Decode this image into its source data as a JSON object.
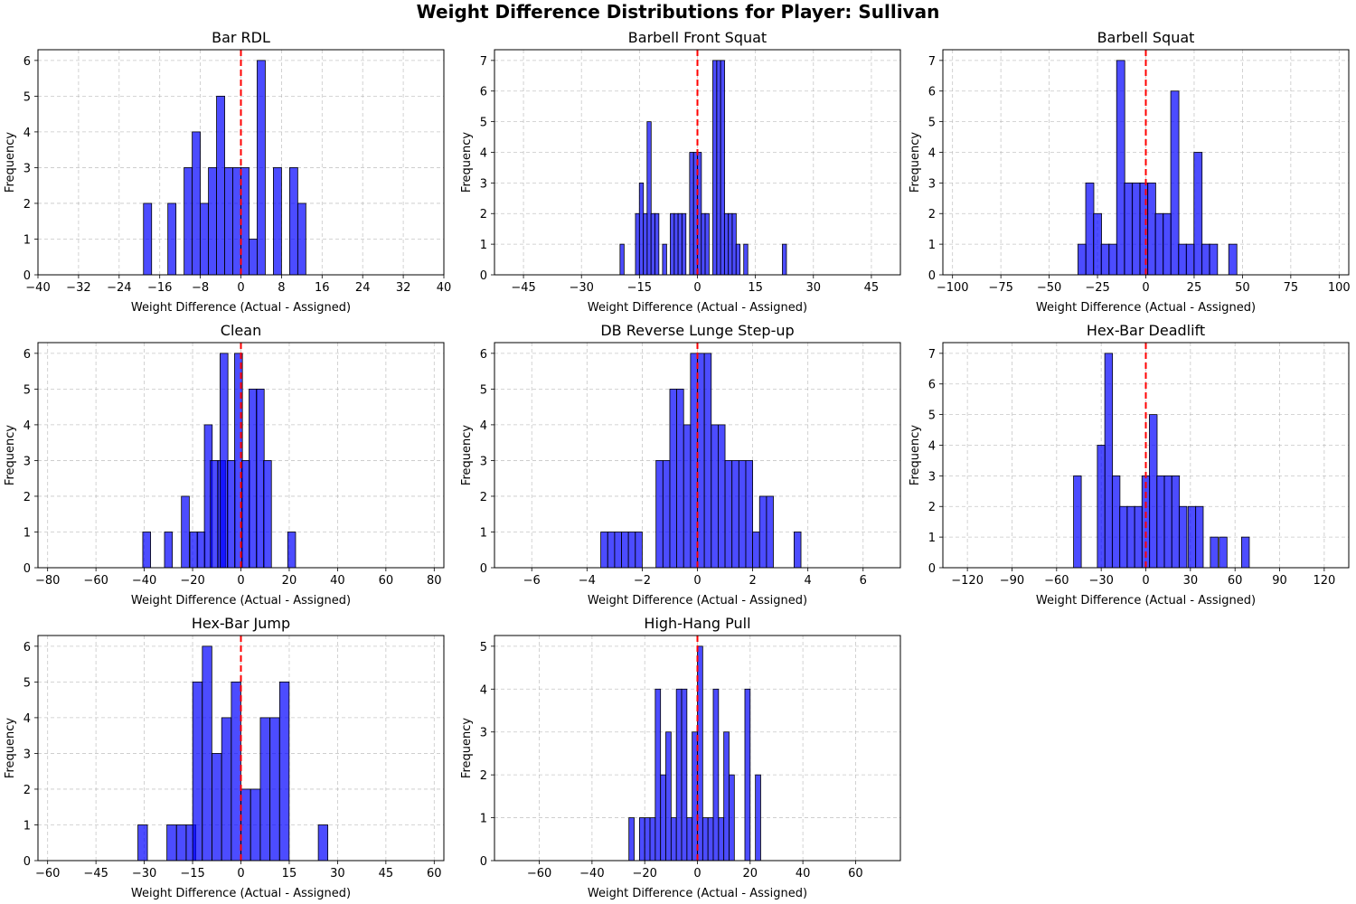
{
  "title": "Weight Difference Distributions for Player: Sullivan",
  "colors": {
    "bar": "#0000ff",
    "bar_edge": "#000000",
    "zero_line": "#ff0000",
    "grid": "#b0b0b0"
  },
  "chart_data": [
    {
      "type": "bar",
      "title": "Bar RDL",
      "xlabel": "Weight Difference (Actual - Assigned)",
      "ylabel": "Frequency",
      "xlim": [
        -40,
        40
      ],
      "ylim": [
        0,
        6.3
      ],
      "xticks": [
        -40,
        -32,
        -24,
        -16,
        -8,
        0,
        8,
        16,
        24,
        32,
        40
      ],
      "yticks": [
        0,
        1,
        2,
        3,
        4,
        5,
        6
      ],
      "grid": true,
      "reference_line_x": 0,
      "bin_width": 1.6,
      "bins": [
        {
          "x": -18.4,
          "count": 2
        },
        {
          "x": -13.6,
          "count": 2
        },
        {
          "x": -10.4,
          "count": 3
        },
        {
          "x": -8.8,
          "count": 4
        },
        {
          "x": -7.2,
          "count": 2
        },
        {
          "x": -5.6,
          "count": 3
        },
        {
          "x": -4.0,
          "count": 5
        },
        {
          "x": -2.4,
          "count": 3
        },
        {
          "x": -0.8,
          "count": 3
        },
        {
          "x": 0.8,
          "count": 3
        },
        {
          "x": 2.4,
          "count": 1
        },
        {
          "x": 4.0,
          "count": 6
        },
        {
          "x": 7.2,
          "count": 3
        },
        {
          "x": 10.4,
          "count": 3
        },
        {
          "x": 12.0,
          "count": 2
        }
      ]
    },
    {
      "type": "bar",
      "title": "Barbell Front Squat",
      "xlabel": "Weight Difference (Actual - Assigned)",
      "ylabel": "Frequency",
      "xlim": [
        -52.5,
        52.5
      ],
      "ylim": [
        0,
        7.35
      ],
      "xticks": [
        -45,
        -30,
        -15,
        0,
        15,
        30,
        45
      ],
      "yticks": [
        0,
        1,
        2,
        3,
        4,
        5,
        6,
        7
      ],
      "grid": true,
      "reference_line_x": 0,
      "bin_width": 1.05,
      "bins": [
        {
          "x": -19.5,
          "count": 1
        },
        {
          "x": -15.5,
          "count": 2
        },
        {
          "x": -14.5,
          "count": 3
        },
        {
          "x": -13.5,
          "count": 2
        },
        {
          "x": -12.5,
          "count": 5
        },
        {
          "x": -11.5,
          "count": 2
        },
        {
          "x": -10.5,
          "count": 2
        },
        {
          "x": -8.5,
          "count": 1
        },
        {
          "x": -6.5,
          "count": 2
        },
        {
          "x": -5.5,
          "count": 2
        },
        {
          "x": -4.5,
          "count": 2
        },
        {
          "x": -3.5,
          "count": 2
        },
        {
          "x": -1.5,
          "count": 4
        },
        {
          "x": -0.5,
          "count": 4
        },
        {
          "x": 0.5,
          "count": 4
        },
        {
          "x": 1.5,
          "count": 2
        },
        {
          "x": 2.5,
          "count": 2
        },
        {
          "x": 4.5,
          "count": 7
        },
        {
          "x": 5.5,
          "count": 7
        },
        {
          "x": 6.5,
          "count": 7
        },
        {
          "x": 7.5,
          "count": 2
        },
        {
          "x": 8.5,
          "count": 2
        },
        {
          "x": 9.5,
          "count": 2
        },
        {
          "x": 10.5,
          "count": 1
        },
        {
          "x": 12.5,
          "count": 1
        },
        {
          "x": 22.5,
          "count": 1
        }
      ]
    },
    {
      "type": "bar",
      "title": "Barbell Squat",
      "xlabel": "Weight Difference (Actual - Assigned)",
      "ylabel": "Frequency",
      "xlim": [
        -105,
        105
      ],
      "ylim": [
        0,
        7.35
      ],
      "xticks": [
        -100,
        -75,
        -50,
        -25,
        0,
        25,
        50,
        75,
        100
      ],
      "yticks": [
        0,
        1,
        2,
        3,
        4,
        5,
        6,
        7
      ],
      "grid": true,
      "reference_line_x": 0,
      "bin_width": 4.2,
      "bins": [
        {
          "x": -33,
          "count": 1
        },
        {
          "x": -29,
          "count": 3
        },
        {
          "x": -25,
          "count": 2
        },
        {
          "x": -21,
          "count": 1
        },
        {
          "x": -17,
          "count": 1
        },
        {
          "x": -13,
          "count": 7
        },
        {
          "x": -9,
          "count": 3
        },
        {
          "x": -5,
          "count": 3
        },
        {
          "x": -1,
          "count": 3
        },
        {
          "x": 3,
          "count": 3
        },
        {
          "x": 7,
          "count": 2
        },
        {
          "x": 11,
          "count": 2
        },
        {
          "x": 15,
          "count": 6
        },
        {
          "x": 19,
          "count": 1
        },
        {
          "x": 23,
          "count": 1
        },
        {
          "x": 27,
          "count": 4
        },
        {
          "x": 31,
          "count": 1
        },
        {
          "x": 35,
          "count": 1
        },
        {
          "x": 45,
          "count": 1
        }
      ]
    },
    {
      "type": "bar",
      "title": "Clean",
      "xlabel": "Weight Difference (Actual - Assigned)",
      "ylabel": "Frequency",
      "xlim": [
        -84,
        84
      ],
      "ylim": [
        0,
        6.3
      ],
      "xticks": [
        -80,
        -60,
        -40,
        -20,
        0,
        20,
        40,
        60,
        80
      ],
      "yticks": [
        0,
        1,
        2,
        3,
        4,
        5,
        6
      ],
      "grid": true,
      "reference_line_x": 0,
      "bin_width": 3.25,
      "bins": [
        {
          "x": -39,
          "count": 1
        },
        {
          "x": -30,
          "count": 1
        },
        {
          "x": -23,
          "count": 2
        },
        {
          "x": -19.5,
          "count": 1
        },
        {
          "x": -16.5,
          "count": 1
        },
        {
          "x": -13.5,
          "count": 4
        },
        {
          "x": -11,
          "count": 3
        },
        {
          "x": -8,
          "count": 3
        },
        {
          "x": -7,
          "count": 6
        },
        {
          "x": -4,
          "count": 3
        },
        {
          "x": -1,
          "count": 6
        },
        {
          "x": 2,
          "count": 3
        },
        {
          "x": 5,
          "count": 5
        },
        {
          "x": 8,
          "count": 5
        },
        {
          "x": 11,
          "count": 3
        },
        {
          "x": 21,
          "count": 1
        }
      ]
    },
    {
      "type": "bar",
      "title": "DB Reverse Lunge Step-up",
      "xlabel": "Weight Difference (Actual - Assigned)",
      "ylabel": "Frequency",
      "xlim": [
        -7.35,
        7.35
      ],
      "ylim": [
        0,
        6.3
      ],
      "xticks": [
        -6,
        -4,
        -2,
        0,
        2,
        4,
        6
      ],
      "yticks": [
        0,
        1,
        2,
        3,
        4,
        5,
        6
      ],
      "grid": true,
      "reference_line_x": 0,
      "bin_width": 0.25,
      "bins": [
        {
          "x": -3.375,
          "count": 1
        },
        {
          "x": -3.125,
          "count": 1
        },
        {
          "x": -2.875,
          "count": 1
        },
        {
          "x": -2.625,
          "count": 1
        },
        {
          "x": -2.375,
          "count": 1
        },
        {
          "x": -2.125,
          "count": 1
        },
        {
          "x": -1.375,
          "count": 3
        },
        {
          "x": -1.125,
          "count": 3
        },
        {
          "x": -0.875,
          "count": 5
        },
        {
          "x": -0.625,
          "count": 5
        },
        {
          "x": -0.375,
          "count": 4
        },
        {
          "x": -0.125,
          "count": 6
        },
        {
          "x": 0.125,
          "count": 6
        },
        {
          "x": 0.375,
          "count": 6
        },
        {
          "x": 0.625,
          "count": 4
        },
        {
          "x": 0.875,
          "count": 4
        },
        {
          "x": 1.125,
          "count": 3
        },
        {
          "x": 1.375,
          "count": 3
        },
        {
          "x": 1.625,
          "count": 3
        },
        {
          "x": 1.875,
          "count": 3
        },
        {
          "x": 2.125,
          "count": 1
        },
        {
          "x": 2.375,
          "count": 2
        },
        {
          "x": 2.625,
          "count": 2
        },
        {
          "x": 3.625,
          "count": 1
        }
      ]
    },
    {
      "type": "bar",
      "title": "Hex-Bar Deadlift",
      "xlabel": "Weight Difference (Actual - Assigned)",
      "ylabel": "Frequency",
      "xlim": [
        -136.5,
        136.5
      ],
      "ylim": [
        0,
        7.35
      ],
      "xticks": [
        -120,
        -90,
        -60,
        -30,
        0,
        30,
        60,
        90,
        120
      ],
      "yticks": [
        0,
        1,
        2,
        3,
        4,
        5,
        6,
        7
      ],
      "grid": true,
      "reference_line_x": 0,
      "bin_width": 5.2,
      "bins": [
        {
          "x": -46,
          "count": 3
        },
        {
          "x": -30,
          "count": 4
        },
        {
          "x": -25,
          "count": 7
        },
        {
          "x": -20,
          "count": 3
        },
        {
          "x": -15,
          "count": 2
        },
        {
          "x": -10,
          "count": 2
        },
        {
          "x": -5,
          "count": 2
        },
        {
          "x": 0,
          "count": 3
        },
        {
          "x": 5,
          "count": 5
        },
        {
          "x": 10,
          "count": 3
        },
        {
          "x": 15,
          "count": 3
        },
        {
          "x": 20,
          "count": 3
        },
        {
          "x": 25,
          "count": 2
        },
        {
          "x": 31,
          "count": 2
        },
        {
          "x": 36,
          "count": 2
        },
        {
          "x": 46,
          "count": 1
        },
        {
          "x": 52,
          "count": 1
        },
        {
          "x": 67,
          "count": 1
        }
      ]
    },
    {
      "type": "bar",
      "title": "Hex-Bar Jump",
      "xlabel": "Weight Difference (Actual - Assigned)",
      "ylabel": "Frequency",
      "xlim": [
        -63,
        63
      ],
      "ylim": [
        0,
        6.3
      ],
      "xticks": [
        -60,
        -45,
        -30,
        -15,
        0,
        15,
        30,
        45,
        60
      ],
      "yticks": [
        0,
        1,
        2,
        3,
        4,
        5,
        6
      ],
      "grid": true,
      "reference_line_x": 0,
      "bin_width": 2.95,
      "bins": [
        {
          "x": -30.5,
          "count": 1
        },
        {
          "x": -21.5,
          "count": 1
        },
        {
          "x": -18.5,
          "count": 1
        },
        {
          "x": -15.5,
          "count": 1
        },
        {
          "x": -13.5,
          "count": 5
        },
        {
          "x": -10.5,
          "count": 6
        },
        {
          "x": -7.5,
          "count": 3
        },
        {
          "x": -4.5,
          "count": 4
        },
        {
          "x": -1.5,
          "count": 5
        },
        {
          "x": 1.5,
          "count": 2
        },
        {
          "x": 4.5,
          "count": 2
        },
        {
          "x": 7.5,
          "count": 4
        },
        {
          "x": 10.5,
          "count": 4
        },
        {
          "x": 13.5,
          "count": 5
        },
        {
          "x": 25.5,
          "count": 1
        }
      ]
    },
    {
      "type": "bar",
      "title": "High-Hang Pull",
      "xlabel": "Weight Difference (Actual - Assigned)",
      "ylabel": "Frequency",
      "xlim": [
        -77,
        77
      ],
      "ylim": [
        0,
        5.25
      ],
      "xticks": [
        -60,
        -40,
        -20,
        0,
        20,
        40,
        60
      ],
      "yticks": [
        0,
        1,
        2,
        3,
        4,
        5
      ],
      "grid": true,
      "reference_line_x": 0,
      "bin_width": 2,
      "bins": [
        {
          "x": -25,
          "count": 1
        },
        {
          "x": -21,
          "count": 1
        },
        {
          "x": -19,
          "count": 1
        },
        {
          "x": -17,
          "count": 1
        },
        {
          "x": -15,
          "count": 4
        },
        {
          "x": -13,
          "count": 2
        },
        {
          "x": -11,
          "count": 3
        },
        {
          "x": -9,
          "count": 1
        },
        {
          "x": -7,
          "count": 4
        },
        {
          "x": -5,
          "count": 4
        },
        {
          "x": -3,
          "count": 1
        },
        {
          "x": -1,
          "count": 3
        },
        {
          "x": 1,
          "count": 5
        },
        {
          "x": 3,
          "count": 1
        },
        {
          "x": 5,
          "count": 1
        },
        {
          "x": 7,
          "count": 4
        },
        {
          "x": 9,
          "count": 1
        },
        {
          "x": 11,
          "count": 3
        },
        {
          "x": 13,
          "count": 2
        },
        {
          "x": 19,
          "count": 4
        },
        {
          "x": 23,
          "count": 2
        }
      ]
    }
  ]
}
